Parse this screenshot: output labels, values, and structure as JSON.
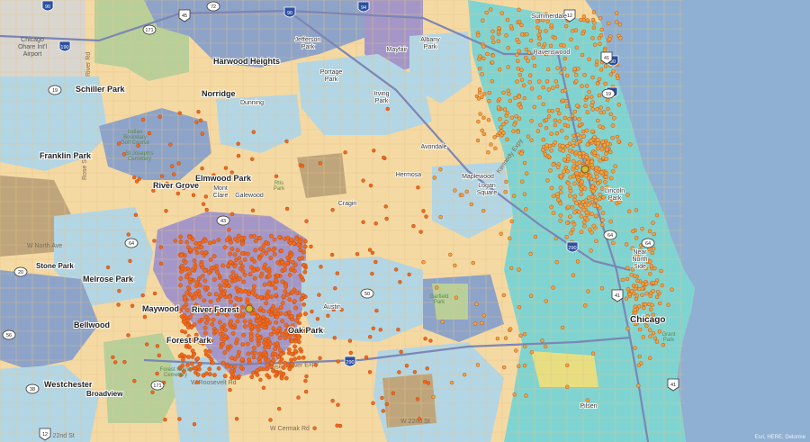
{
  "map": {
    "place_labels": {
      "schiller_park": "Schiller Park",
      "harwood_heights": "Harwood Heights",
      "norridge": "Norridge",
      "franklin_park": "Franklin Park",
      "elmwood_park": "Elmwood Park",
      "river_grove": "River Grove",
      "stone_park": "Stone Park",
      "melrose_park": "Melrose Park",
      "bellwood": "Bellwood",
      "maywood": "Maywood",
      "river_forest": "River Forest",
      "forest_park": "Forest Park",
      "oak_park": "Oak Park",
      "westchester": "Westchester",
      "broadview": "Broadview",
      "chicago": "Chicago"
    },
    "neighborhood_labels": {
      "summerdale": "Summerdale",
      "ravenswood": "Ravenswood",
      "jefferson_park": [
        "Jefferson",
        "Park"
      ],
      "mayfair": "Mayfair",
      "albany_park": [
        "Albany",
        "Park"
      ],
      "portage_park": [
        "Portage",
        "Park"
      ],
      "irving_park": [
        "Irving",
        "Park"
      ],
      "dunning": "Dunning",
      "avondale": "Avondale",
      "hermosa": "Hermosa",
      "maplewood": "Maplewood",
      "logan_square": [
        "Logan",
        "Square"
      ],
      "lincoln_park": [
        "Lincoln",
        "Park"
      ],
      "mont_clare": [
        "Mont",
        "Clare"
      ],
      "galewood": "Galewood",
      "cragin": "Cragin",
      "austin": "Austin",
      "near_north_side": [
        "Near",
        "North",
        "Side"
      ],
      "pilsen": "Pilsen"
    },
    "feature_labels": {
      "ohare": [
        "Chicago",
        "Ohare Int'l",
        "Airport"
      ],
      "indian_boundary": [
        "Indian",
        "Boundary",
        "Golf Course"
      ],
      "st_josephs": [
        "St Joseph's",
        "Cemetery"
      ],
      "rtis_park": [
        "Rtis",
        "Park"
      ],
      "garfield_park": [
        "Garfield",
        "Park"
      ],
      "forest_home": [
        "Forest Home",
        "Cemetery"
      ],
      "grant_park": [
        "Grant",
        "Park"
      ]
    },
    "street_labels": {
      "w_north_ave": "W North Ave",
      "w_roosevelt_rd": "W Roosevelt Rd",
      "w_cermak_rd": "W Cermak Rd",
      "w_22nd_st": "W 22nd St",
      "kennedy_expy": "Kennedy Expy",
      "eisenhower_expy": "Eisenhower Expy",
      "rose_st": "Rose St",
      "river_rd": "River Rd"
    },
    "route_shields": {
      "interstate": [
        "90",
        "190",
        "94",
        "90",
        "290",
        "290",
        "90",
        "94"
      ],
      "us_highway": [
        "12",
        "45",
        "12",
        "41",
        "41",
        "41"
      ],
      "state_route": [
        "72",
        "19",
        "19",
        "171",
        "43",
        "64",
        "64",
        "64",
        "20",
        "50",
        "56",
        "38",
        "171"
      ]
    },
    "attribution": "Esri, HERE, Delorme",
    "colors": {
      "water": "#8fb0d2",
      "tan": "#f5d9a3",
      "light_blue": "#b3d6e5",
      "teal": "#7fd4d1",
      "purple": "#a497c8",
      "slate_blue": "#8ea3c8",
      "brown": "#bfa57c",
      "green": "#b8cf9a",
      "dot_orange": "#f06a1c",
      "dot_light": "#f2a23c",
      "store_marker": "#d8b838"
    }
  }
}
